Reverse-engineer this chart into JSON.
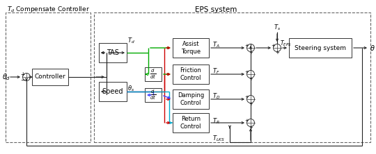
{
  "bg": "#ffffff",
  "colors": {
    "green": "#00aa00",
    "red": "#cc0000",
    "blue": "#4444ff",
    "cyan": "#00aacc",
    "black": "#000000"
  },
  "labels": {
    "theta_d": "$\\theta_d$",
    "theta_s": "$\\theta_s$",
    "T_d": "$T_d$",
    "T_A": "$T_A$",
    "T_F": "$T_F$",
    "T_D": "$T_D$",
    "T_R": "$T_R$",
    "T_EPS": "$T_{EPS}$",
    "T_s": "$T_s$",
    "T_LKS": "$T_{LKS}$",
    "theta": "$\\theta$",
    "controller": "Controller",
    "tas": "TAS",
    "speed": "Speed",
    "assist": "Assist\nTorque",
    "friction": "Friction\nControl",
    "damping": "Damping\nControl",
    "return_ctrl": "Return\nControl",
    "steering": "Steering system",
    "d_dt": "$\\frac{d}{dt}$",
    "title_cc": "$T_d$ Compensate Controller",
    "title_eps": "EPS system"
  }
}
